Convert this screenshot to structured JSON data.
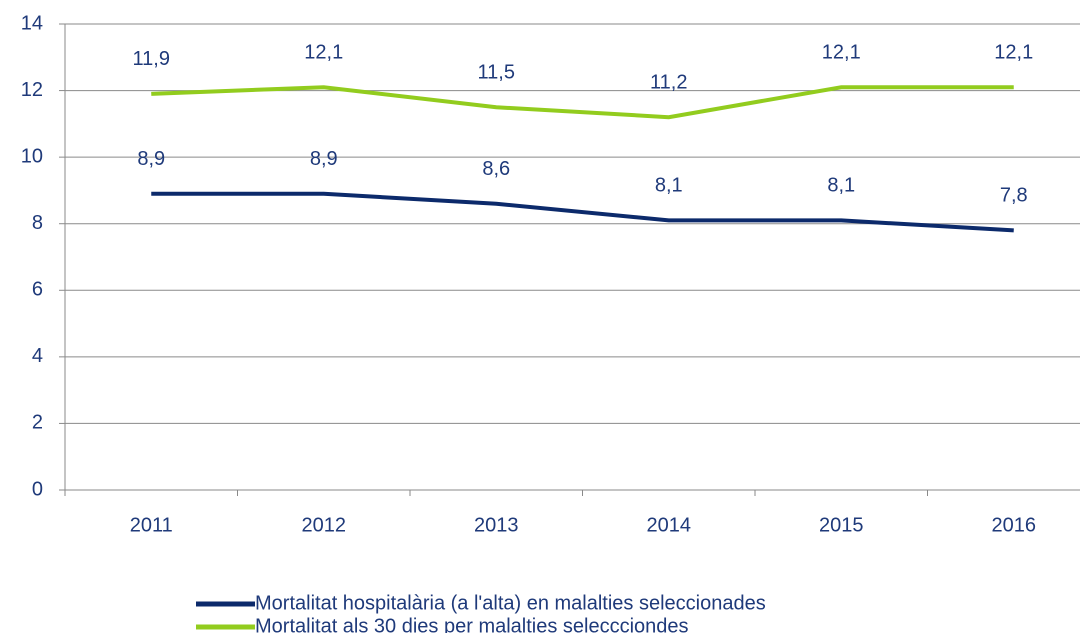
{
  "chart_data": {
    "type": "line",
    "categories": [
      "2011",
      "2012",
      "2013",
      "2014",
      "2015",
      "2016"
    ],
    "series": [
      {
        "name": "Mortalitat hospitalària (a l'alta) en malalties seleccionades",
        "color": "#0c2a6b",
        "values": [
          8.9,
          8.9,
          8.6,
          8.1,
          8.1,
          7.8
        ],
        "value_labels": [
          "8,9",
          "8,9",
          "8,6",
          "8,1",
          "8,1",
          "7,8"
        ]
      },
      {
        "name": "Mortalitat als 30 dies per malalties seleccciondes",
        "color": "#92cc1e",
        "values": [
          11.9,
          12.1,
          11.5,
          11.2,
          12.1,
          12.1
        ],
        "value_labels": [
          "11,9",
          "12,1",
          "11,5",
          "11,2",
          "12,1",
          "12,1"
        ]
      }
    ],
    "ylim": [
      0,
      14
    ],
    "yticks": [
      0,
      2,
      4,
      6,
      8,
      10,
      12,
      14
    ],
    "grid": true
  }
}
